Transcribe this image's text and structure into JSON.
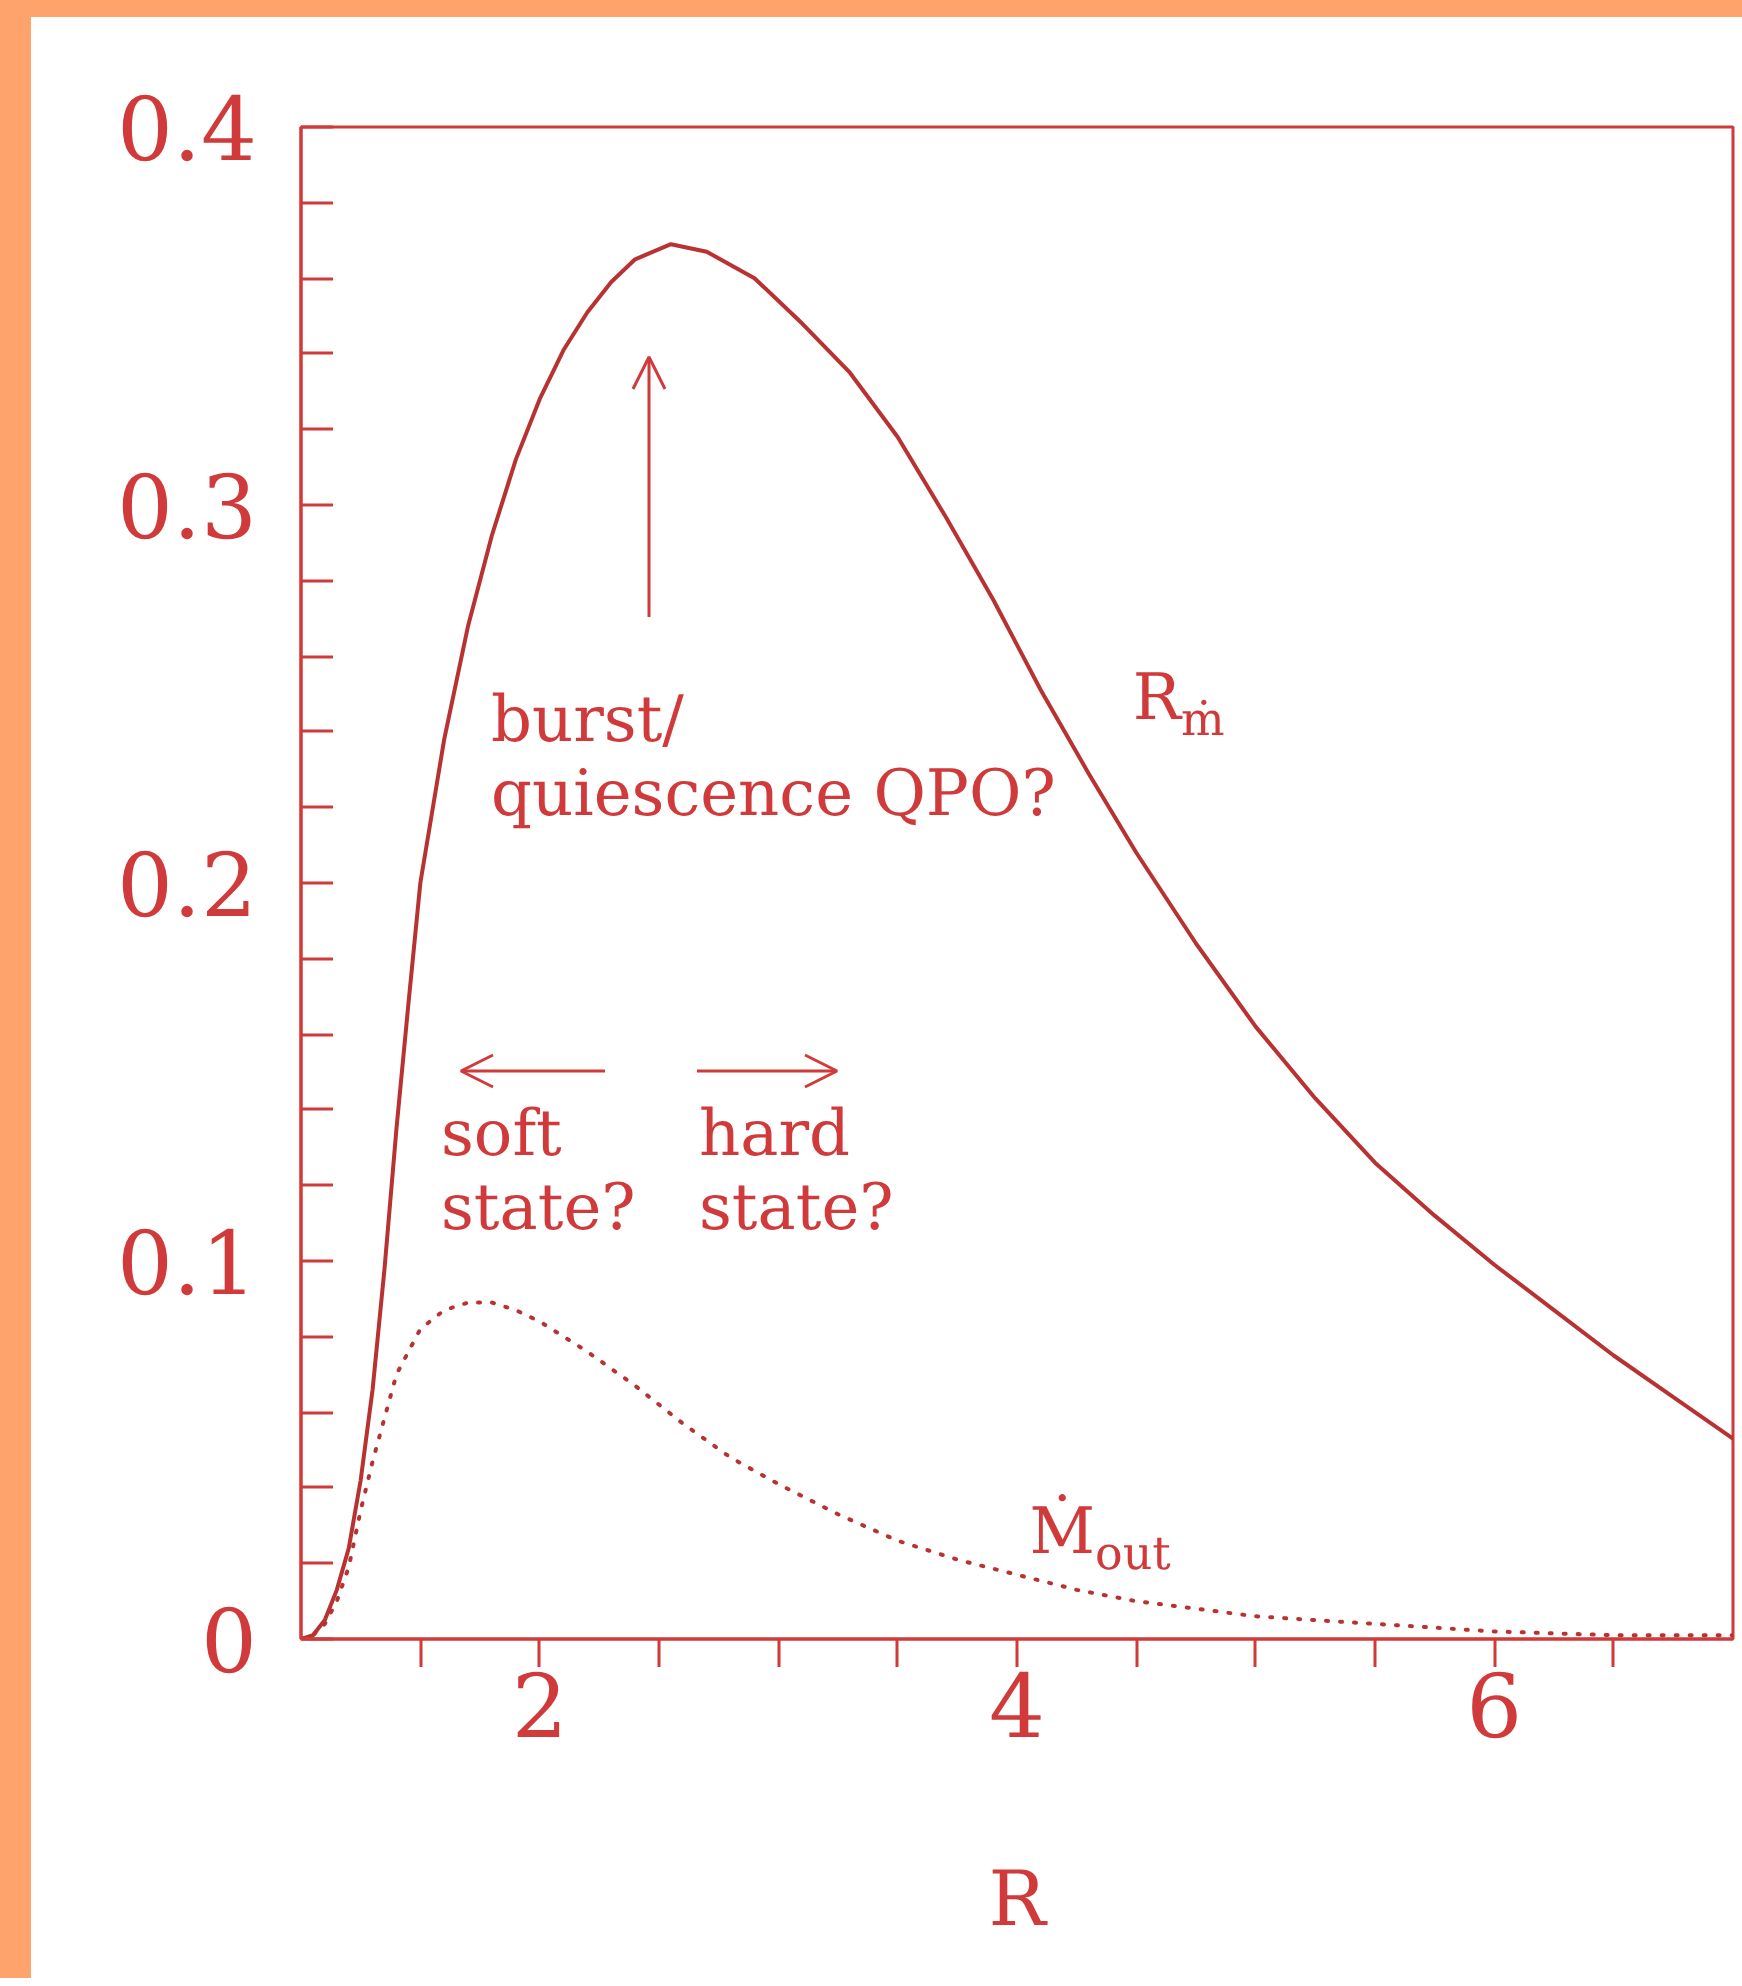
{
  "chart_data": {
    "type": "line",
    "xlabel": "R",
    "xlim": [
      1,
      7
    ],
    "ylim": [
      0,
      0.4
    ],
    "grid": false,
    "xticks": [
      {
        "value": 1.5,
        "label": null
      },
      2,
      {
        "value": 2.5,
        "label": null
      },
      {
        "value": 3,
        "label": null
      },
      {
        "value": 3.5,
        "label": null
      },
      4,
      {
        "value": 4.5,
        "label": null
      },
      {
        "value": 5,
        "label": null
      },
      {
        "value": 5.5,
        "label": null
      },
      6,
      {
        "value": 6.5,
        "label": null
      }
    ],
    "yticks": [
      0,
      {
        "value": 0.02,
        "label": null
      },
      {
        "value": 0.04,
        "label": null
      },
      {
        "value": 0.06,
        "label": null
      },
      {
        "value": 0.08,
        "label": null
      },
      0.1,
      {
        "value": 0.12,
        "label": null
      },
      {
        "value": 0.14,
        "label": null
      },
      {
        "value": 0.16,
        "label": null
      },
      {
        "value": 0.18,
        "label": null
      },
      0.2,
      {
        "value": 0.22,
        "label": null
      },
      {
        "value": 0.24,
        "label": null
      },
      {
        "value": 0.26,
        "label": null
      },
      {
        "value": 0.28,
        "label": null
      },
      0.3,
      {
        "value": 0.32,
        "label": null
      },
      {
        "value": 0.34,
        "label": null
      },
      {
        "value": 0.36,
        "label": null
      },
      {
        "value": 0.38,
        "label": null
      },
      0.4
    ],
    "series": [
      {
        "name": "R$_{ṁ}$",
        "color": "#b83232",
        "line_style": "solid",
        "x": [
          1.0,
          1.05,
          1.1,
          1.15,
          1.2,
          1.25,
          1.3,
          1.35,
          1.4,
          1.45,
          1.5,
          1.6,
          1.7,
          1.8,
          1.9,
          2.0,
          2.1,
          2.2,
          2.3,
          2.4,
          2.55,
          2.7,
          2.9,
          3.1,
          3.3,
          3.5,
          3.7,
          3.9,
          4.1,
          4.3,
          4.5,
          4.75,
          5.0,
          5.25,
          5.5,
          5.75,
          6.0,
          6.25,
          6.5,
          6.75,
          7.0
        ],
        "values": [
          0,
          0.001,
          0.005,
          0.013,
          0.024,
          0.042,
          0.066,
          0.098,
          0.135,
          0.168,
          0.2,
          0.238,
          0.268,
          0.292,
          0.312,
          0.328,
          0.341,
          0.351,
          0.359,
          0.365,
          0.369,
          0.367,
          0.36,
          0.348,
          0.335,
          0.318,
          0.297,
          0.275,
          0.251,
          0.229,
          0.208,
          0.184,
          0.162,
          0.143,
          0.126,
          0.112,
          0.099,
          0.087,
          0.075,
          0.064,
          0.053
        ]
      },
      {
        "name": "Ṁ$_{out}$",
        "color": "#b83232",
        "line_style": "dotted",
        "x": [
          1.0,
          1.05,
          1.1,
          1.15,
          1.2,
          1.25,
          1.3,
          1.4,
          1.5,
          1.6,
          1.7,
          1.8,
          1.9,
          2.0,
          2.2,
          2.4,
          2.6,
          2.8,
          3.0,
          3.25,
          3.5,
          3.75,
          4.0,
          4.25,
          4.5,
          4.75,
          5.0,
          5.5,
          6.0,
          6.5,
          7.0
        ],
        "values": [
          0,
          0.001,
          0.004,
          0.01,
          0.019,
          0.034,
          0.047,
          0.07,
          0.082,
          0.087,
          0.089,
          0.089,
          0.087,
          0.084,
          0.076,
          0.067,
          0.057,
          0.048,
          0.041,
          0.033,
          0.026,
          0.021,
          0.017,
          0.013,
          0.01,
          0.008,
          0.006,
          0.004,
          0.002,
          0.001,
          0.001
        ]
      }
    ],
    "annotations": [
      "burst/\nquiescence QPO?",
      "soft\nstate?",
      "hard\nstate?"
    ]
  }
}
